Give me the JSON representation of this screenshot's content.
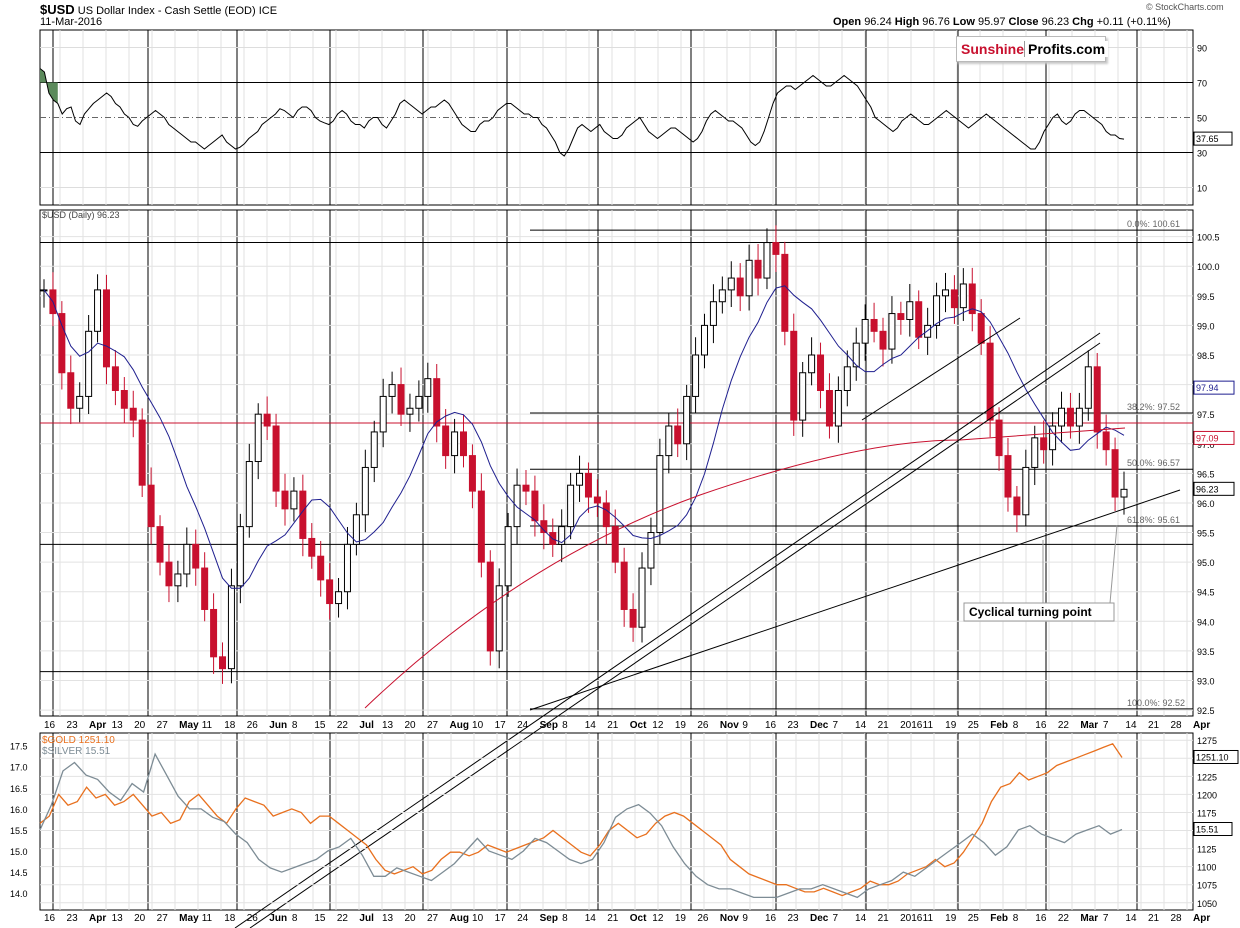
{
  "header": {
    "symbol": "$USD",
    "name": "US Dollar Index - Cash Settle (EOD)",
    "exchange": "ICE",
    "date": "11-Mar-2016",
    "open_label": "Open",
    "open": "96.24",
    "high_label": "High",
    "high": "96.76",
    "low_label": "Low",
    "low": "95.97",
    "close_label": "Close",
    "close": "96.23",
    "chg_label": "Chg",
    "chg": "+0.11 (+0.11%)",
    "watermark": "© StockCharts.com"
  },
  "brand": {
    "part1": "Sunshine",
    "part2": "Profits.com"
  },
  "colors": {
    "up": "#000000",
    "down": "#c8102e",
    "ma50": "#1f1f8f",
    "ma200": "#c8102e",
    "gold": "#e8701e",
    "silver": "#7d8c95",
    "rsi_fill": "#5b8a5b"
  },
  "chart_data": [
    {
      "type": "line",
      "title": "RSI",
      "y_ticks": [
        90,
        70,
        50,
        30,
        10
      ],
      "ylim": [
        0,
        100
      ],
      "last_label": "37.65",
      "overbought": 70,
      "midline": 50,
      "oversold": 30,
      "values": [
        78,
        76,
        64,
        60,
        58,
        52,
        55,
        56,
        48,
        46,
        52,
        55,
        58,
        60,
        62,
        64,
        62,
        58,
        56,
        52,
        50,
        46,
        45,
        48,
        50,
        52,
        54,
        52,
        50,
        46,
        44,
        42,
        40,
        38,
        36,
        36,
        34,
        32,
        34,
        36,
        38,
        40,
        36,
        34,
        32,
        33,
        35,
        38,
        40,
        42,
        46,
        48,
        50,
        52,
        55,
        54,
        52,
        50,
        54,
        56,
        56,
        54,
        50,
        48,
        47,
        46,
        48,
        52,
        54,
        52,
        48,
        46,
        46,
        44,
        48,
        50,
        50,
        46,
        44,
        48,
        52,
        58,
        60,
        58,
        56,
        54,
        52,
        54,
        56,
        56,
        58,
        60,
        58,
        54,
        50,
        46,
        44,
        42,
        42,
        46,
        48,
        48,
        50,
        54,
        56,
        58,
        58,
        56,
        54,
        52,
        52,
        50,
        50,
        46,
        44,
        40,
        36,
        30,
        28,
        32,
        38,
        44,
        46,
        44,
        42,
        44,
        46,
        42,
        40,
        38,
        38,
        40,
        44,
        46,
        48,
        50,
        46,
        42,
        40,
        38,
        40,
        42,
        44,
        44,
        42,
        40,
        38,
        36,
        38,
        42,
        48,
        52,
        54,
        52,
        50,
        48,
        48,
        46,
        44,
        40,
        36,
        34,
        36,
        42,
        50,
        58,
        64,
        66,
        68,
        68,
        66,
        68,
        70,
        72,
        74,
        72,
        70,
        68,
        68,
        70,
        72,
        74,
        72,
        70,
        68,
        64,
        60,
        56,
        50,
        48,
        46,
        44,
        42,
        44,
        48,
        50,
        52,
        50,
        48,
        46,
        46,
        48,
        50,
        52,
        54,
        52,
        50,
        48,
        46,
        44,
        46,
        48,
        50,
        52,
        50,
        48,
        46,
        44,
        42,
        40,
        38,
        36,
        34,
        32,
        32,
        36,
        42,
        46,
        50,
        52,
        48,
        46,
        48,
        52,
        54,
        54,
        52,
        50,
        48,
        46,
        42,
        40,
        40,
        38,
        37.65
      ]
    },
    {
      "type": "candlestick",
      "title": "$USD (Daily) 96.23",
      "y_ticks": [
        100.5,
        100.0,
        99.5,
        99.0,
        98.5,
        98.0,
        97.5,
        97.0,
        96.5,
        96.0,
        95.5,
        95.0,
        94.5,
        94.0,
        93.5,
        93.0,
        92.5
      ],
      "ylim": [
        92.4,
        100.95
      ],
      "x_ticks": [
        "16",
        "23",
        "Apr",
        "13",
        "20",
        "27",
        "May",
        "11",
        "18",
        "26",
        "Jun",
        "8",
        "15",
        "22",
        "Jul",
        "13",
        "20",
        "27",
        "Aug",
        "10",
        "17",
        "24",
        "Sep",
        "8",
        "14",
        "21",
        "Oct",
        "12",
        "19",
        "26",
        "Nov",
        "9",
        "16",
        "23",
        "Dec",
        "7",
        "14",
        "21",
        "2016",
        "11",
        "19",
        "25",
        "Feb",
        "8",
        "16",
        "22",
        "Mar",
        "7",
        "14",
        "21",
        "28",
        "Apr"
      ],
      "close_path": [
        99.6,
        99.2,
        98.2,
        97.6,
        97.8,
        98.9,
        99.6,
        98.3,
        97.9,
        97.6,
        97.4,
        96.3,
        95.6,
        95.0,
        94.6,
        94.8,
        95.3,
        94.9,
        94.2,
        93.4,
        93.2,
        94.6,
        95.6,
        96.7,
        97.5,
        97.3,
        96.2,
        95.9,
        96.2,
        95.4,
        95.1,
        94.7,
        94.3,
        94.5,
        95.3,
        95.8,
        96.6,
        97.2,
        97.8,
        98.0,
        97.5,
        97.6,
        97.8,
        98.1,
        97.3,
        96.8,
        97.2,
        96.8,
        96.2,
        95.0,
        93.5,
        94.6,
        95.6,
        96.3,
        96.2,
        95.7,
        95.5,
        95.3,
        95.6,
        96.3,
        96.5,
        96.1,
        96.0,
        95.6,
        95.0,
        94.2,
        93.9,
        94.9,
        95.5,
        96.8,
        97.3,
        97.0,
        97.8,
        98.5,
        99.0,
        99.4,
        99.6,
        99.8,
        99.5,
        100.1,
        99.8,
        100.4,
        100.2,
        98.9,
        97.4,
        98.2,
        98.5,
        97.9,
        97.3,
        97.9,
        98.3,
        98.7,
        99.1,
        98.9,
        98.6,
        99.2,
        99.1,
        99.4,
        98.8,
        99.0,
        99.5,
        99.6,
        99.3,
        99.7,
        99.2,
        98.7,
        97.4,
        96.8,
        96.1,
        95.8,
        96.6,
        97.1,
        96.9,
        97.3,
        97.6,
        97.3,
        97.6,
        98.3,
        97.2,
        96.9,
        96.1,
        96.23
      ],
      "ma50_label": "97.94",
      "ma200_label": "97.09",
      "last_label": "96.23",
      "fib_levels": [
        {
          "label": "0.0%: 100.61",
          "value": 100.61
        },
        {
          "label": "38.2%: 97.52",
          "value": 97.52
        },
        {
          "label": "50.0%: 96.57",
          "value": 96.57
        },
        {
          "label": "61.8%: 95.61",
          "value": 95.61
        },
        {
          "label": "100.0%: 92.52",
          "value": 92.52
        }
      ],
      "horizontal_levels": [
        100.4,
        97.35,
        95.3,
        93.15
      ],
      "annotation": "Cyclical turning point"
    },
    {
      "type": "line",
      "title": "Gold and Silver",
      "series": [
        {
          "name": "$GOLD",
          "last_label": "1251.10",
          "legend": "$GOLD 1251.10",
          "values": [
            1160,
            1170,
            1200,
            1185,
            1190,
            1210,
            1195,
            1200,
            1185,
            1190,
            1200,
            1185,
            1170,
            1175,
            1160,
            1165,
            1190,
            1200,
            1185,
            1170,
            1160,
            1180,
            1195,
            1190,
            1185,
            1170,
            1175,
            1180,
            1175,
            1160,
            1170,
            1170,
            1160,
            1150,
            1140,
            1130,
            1110,
            1095,
            1090,
            1095,
            1100,
            1090,
            1095,
            1110,
            1120,
            1120,
            1115,
            1120,
            1130,
            1125,
            1120,
            1125,
            1130,
            1135,
            1140,
            1150,
            1140,
            1130,
            1120,
            1115,
            1130,
            1150,
            1160,
            1150,
            1140,
            1145,
            1160,
            1170,
            1175,
            1170,
            1160,
            1150,
            1140,
            1130,
            1110,
            1100,
            1090,
            1085,
            1080,
            1075,
            1075,
            1070,
            1065,
            1065,
            1070,
            1065,
            1060,
            1065,
            1070,
            1080,
            1075,
            1075,
            1080,
            1090,
            1095,
            1100,
            1110,
            1100,
            1105,
            1120,
            1140,
            1160,
            1190,
            1210,
            1215,
            1230,
            1220,
            1225,
            1230,
            1240,
            1245,
            1250,
            1255,
            1260,
            1265,
            1270,
            1251.1
          ]
        },
        {
          "name": "$SILVER",
          "last_label": "15.51",
          "legend": "$SILVER 15.51",
          "values": [
            15.5,
            16.1,
            16.9,
            17.1,
            16.8,
            16.7,
            16.4,
            16.2,
            16.6,
            16.4,
            17.3,
            16.8,
            16.3,
            16.0,
            16.0,
            15.8,
            15.7,
            15.4,
            15.2,
            14.8,
            14.6,
            14.5,
            14.6,
            14.7,
            14.8,
            15.0,
            15.1,
            15.3,
            14.9,
            14.4,
            14.4,
            14.6,
            14.5,
            14.4,
            14.3,
            14.5,
            14.7,
            15.0,
            15.3,
            15.0,
            14.9,
            14.8,
            15.0,
            15.3,
            15.2,
            15.0,
            14.8,
            14.7,
            14.8,
            15.2,
            15.8,
            16.0,
            16.1,
            15.9,
            15.6,
            15.1,
            14.7,
            14.4,
            14.2,
            14.1,
            14.1,
            14.0,
            13.9,
            13.9,
            13.9,
            14.0,
            14.1,
            14.1,
            14.2,
            14.1,
            14.0,
            13.9,
            14.1,
            14.2,
            14.3,
            14.5,
            14.4,
            14.6,
            14.8,
            15.0,
            15.2,
            15.4,
            15.2,
            14.9,
            15.1,
            15.5,
            15.6,
            15.4,
            15.3,
            15.2,
            15.4,
            15.5,
            15.6,
            15.4,
            15.51
          ]
        }
      ],
      "left_ticks": [
        "17.5",
        "17.0",
        "16.5",
        "16.0",
        "15.5",
        "15.0",
        "14.5",
        "14.0"
      ],
      "right_ticks": [
        "1275",
        "1250",
        "1225",
        "1200",
        "1175",
        "1150",
        "1125",
        "1100",
        "1075",
        "1050"
      ],
      "x_ticks": [
        "16",
        "23",
        "Apr",
        "13",
        "20",
        "27",
        "May",
        "11",
        "18",
        "26",
        "Jun",
        "8",
        "15",
        "22",
        "Jul",
        "13",
        "20",
        "27",
        "Aug",
        "10",
        "17",
        "24",
        "Sep",
        "8",
        "14",
        "21",
        "Oct",
        "12",
        "19",
        "26",
        "Nov",
        "9",
        "16",
        "23",
        "Dec",
        "7",
        "14",
        "21",
        "2016",
        "11",
        "19",
        "25",
        "Feb",
        "8",
        "16",
        "22",
        "Mar",
        "7",
        "14",
        "21",
        "28",
        "Apr"
      ]
    }
  ]
}
